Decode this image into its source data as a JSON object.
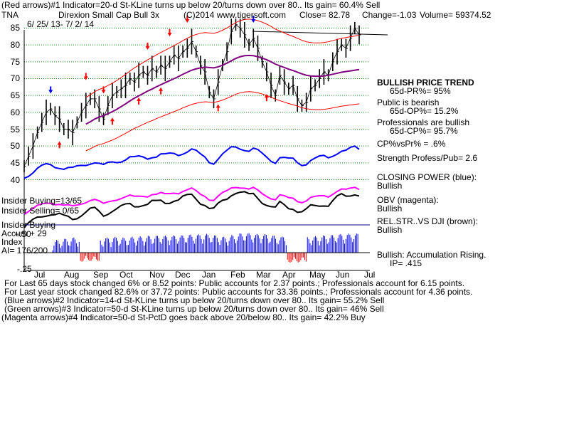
{
  "header": {
    "line1": "(Red arrows)#1 Indicator=20-d St-KLine turns up below 20/turns down over 80.. Its gain= 60.4% Sell",
    "symbol": "TNA",
    "company": "Direxion Small Cap Bull 3x",
    "copyright": "(C)2014 www.tigersoft.com",
    "close": "Close=  82.78",
    "change": "Change=-1.03",
    "volume": "Volume=  59374.52",
    "date_range": "6/ 25/ 13- 7/ 2/ 14"
  },
  "right_panel": [
    {
      "text": "BULLISH PRICE TREND",
      "bold": true
    },
    {
      "text": "65d-PR%= 95%",
      "bold": false
    },
    {
      "text": "Public is bearish",
      "bold": false
    },
    {
      "text": "65d-OP%= 15.2%",
      "bold": false
    },
    {
      "text": "Professionals are bullish",
      "bold": false
    },
    {
      "text": "65d-CP%= 95.7%",
      "bold": false
    },
    {
      "text": "CP%vsPr% =  .6%",
      "bold": false
    },
    {
      "text": "Strength Profess/Pub= 2.6",
      "bold": false
    },
    {
      "text": "CLOSING POWER (blue):",
      "bold": false
    },
    {
      "text": "Bullish",
      "bold": false
    },
    {
      "text": "OBV (magenta):",
      "bold": false
    },
    {
      "text": "Bullish",
      "bold": false
    },
    {
      "text": "REL.STR..VS DJI (brown):",
      "bold": false
    },
    {
      "text": "Bullish",
      "bold": false
    },
    {
      "text": "Bullish: Accumulation Rising.",
      "bold": false
    },
    {
      "text": "IP= .415",
      "bold": false
    }
  ],
  "left_labels": {
    "insider_buying": "Insider Buying=13/65",
    "insider_selling": "Insider Selling= 0/65",
    "accum_1": "Insider Buying",
    "accum_2": "Accum + 29",
    "accum_3": "Index",
    "ai": "AI= 176/200",
    "plus50": "+.50",
    "minus25": "-.25"
  },
  "footer": [
    "For Last 65 days stock changed  6% or  8.52 points:  Public accounts for  2.37 points.;  Professionals account for  6.15 points.",
    "For Last year stock changed  82.6% or  37.72 points:  Public accounts for  33.36 points.;  Professionals account for  4.36 points.",
    "(Blue arrows)#2 Indicator=14-d St-KLine turns up below 20/turns down over 80.. Its gain= 55.2% Sell",
    "(Green arrows)#3 Indicator=50-d St-KLine turns up below 20/turns down over 80.. Its gain= 46% Sell",
    "(Magenta arrows)#4 Indicator=50-d St-PctD goes back above 20/below 80.. Its gain= 42.2% Buy"
  ],
  "colors": {
    "price": "#000000",
    "ma50": "#800080",
    "bands": "#ff0000",
    "closing_power": "#0000ff",
    "obv": "#ff00ff",
    "relstr": "#000000",
    "accum_bars": "#0000ff",
    "accum_neg": "#ff0000",
    "grid": "#008000",
    "sell_arrow": "#ff0000",
    "blue_arrow": "#0000ff"
  },
  "chart_data": {
    "type": "line",
    "y_ticks": [
      40,
      45,
      50,
      55,
      60,
      65,
      70,
      75,
      80,
      85
    ],
    "ylim": [
      38,
      87
    ],
    "x_ticks": [
      "Jul",
      "Aug",
      "Sep",
      "Oct",
      "Nov",
      "Dec",
      "Jan",
      "Feb",
      "Mar",
      "Apr",
      "May",
      "Jun",
      "Jul"
    ],
    "series": [
      {
        "key": "price",
        "values": [
          44,
          47,
          50,
          54,
          57,
          60,
          61,
          59,
          58,
          55,
          55,
          54,
          57,
          60,
          62,
          64,
          64,
          61,
          58,
          62,
          65,
          66,
          67,
          68,
          70,
          69,
          71,
          72,
          71,
          73,
          72,
          74,
          73,
          75,
          77,
          76,
          78,
          79,
          81,
          78,
          74,
          72,
          66,
          64,
          69,
          74,
          78,
          84,
          86,
          85,
          83,
          80,
          82,
          79,
          75,
          72,
          68,
          65,
          71,
          69,
          67,
          68,
          64,
          62,
          63,
          67,
          68,
          70,
          72,
          71,
          75,
          78,
          80,
          79,
          82,
          85,
          83
        ]
      },
      {
        "key": "ma50",
        "values": [
          null,
          null,
          null,
          null,
          null,
          null,
          null,
          null,
          null,
          null,
          null,
          null,
          null,
          null,
          56.5,
          57.2,
          58,
          58.6,
          59,
          59.6,
          60.2,
          60.9,
          61.7,
          62.5,
          63.4,
          64.2,
          64.9,
          65.6,
          66.3,
          66.9,
          67.6,
          68.2,
          68.8,
          69.4,
          70,
          70.6,
          71.3,
          71.9,
          72.5,
          72.9,
          73.2,
          73.4,
          73.3,
          73.2,
          73.5,
          74,
          74.6,
          75.3,
          76,
          76.5,
          76.8,
          76.9,
          76.8,
          76.5,
          76.1,
          75.6,
          75,
          74.3,
          73.8,
          73.3,
          72.8,
          72.4,
          71.9,
          71.4,
          71,
          70.8,
          70.7,
          70.7,
          70.8,
          71,
          71.3,
          71.6,
          71.9,
          72.1,
          72.3,
          72.5,
          72.7
        ]
      }
    ],
    "sell_arrow_indices": [
      14,
      18,
      28,
      33,
      37
    ],
    "sell_arrow_low_indices": [
      20,
      26,
      31,
      37,
      44,
      54
    ],
    "buy_arrow_indices": [
      6,
      52
    ],
    "up_arrow_indices": [
      8,
      20,
      26,
      31,
      44,
      55
    ]
  }
}
